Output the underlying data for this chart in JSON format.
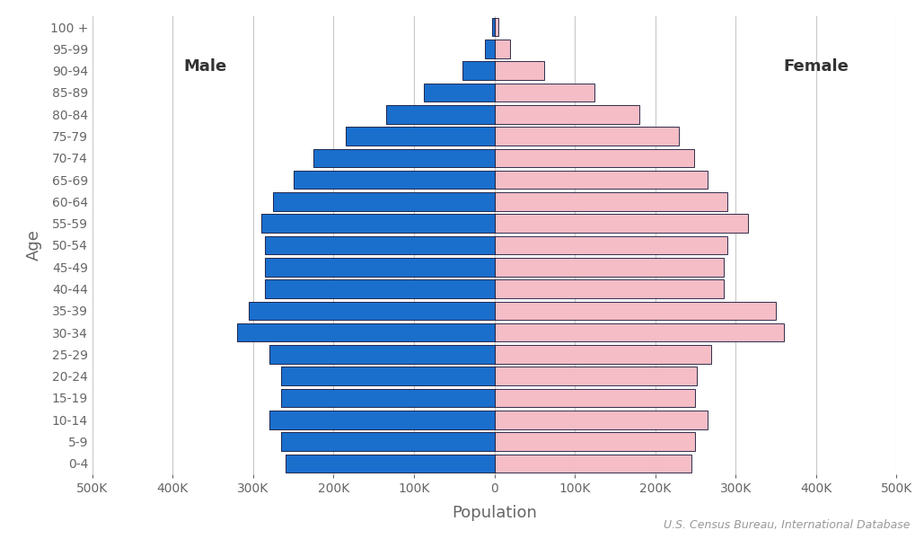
{
  "age_groups": [
    "0-4",
    "5-9",
    "10-14",
    "15-19",
    "20-24",
    "25-29",
    "30-34",
    "35-39",
    "40-44",
    "45-49",
    "50-54",
    "55-59",
    "60-64",
    "65-69",
    "70-74",
    "75-79",
    "80-84",
    "85-89",
    "90-94",
    "95-99",
    "100 +"
  ],
  "male": [
    260000,
    265000,
    280000,
    265000,
    265000,
    280000,
    320000,
    305000,
    285000,
    285000,
    285000,
    290000,
    275000,
    250000,
    225000,
    185000,
    135000,
    88000,
    40000,
    12000,
    2500
  ],
  "female": [
    245000,
    250000,
    265000,
    250000,
    252000,
    270000,
    360000,
    350000,
    285000,
    285000,
    290000,
    315000,
    290000,
    265000,
    248000,
    230000,
    180000,
    125000,
    62000,
    20000,
    5000
  ],
  "male_color": "#1a6fcd",
  "female_color": "#f5bdc6",
  "bar_edgecolor": "#111133",
  "bar_linewidth": 0.6,
  "xlim": 500000,
  "xlabel": "Population",
  "ylabel": "Age",
  "male_label": "Male",
  "female_label": "Female",
  "source_text": "U.S. Census Bureau, International Database",
  "background_color": "#ffffff",
  "grid_color": "#c8c8c8",
  "tick_color": "#666666",
  "label_fontsize": 13,
  "tick_fontsize": 10,
  "source_fontsize": 9,
  "bar_height": 0.85
}
